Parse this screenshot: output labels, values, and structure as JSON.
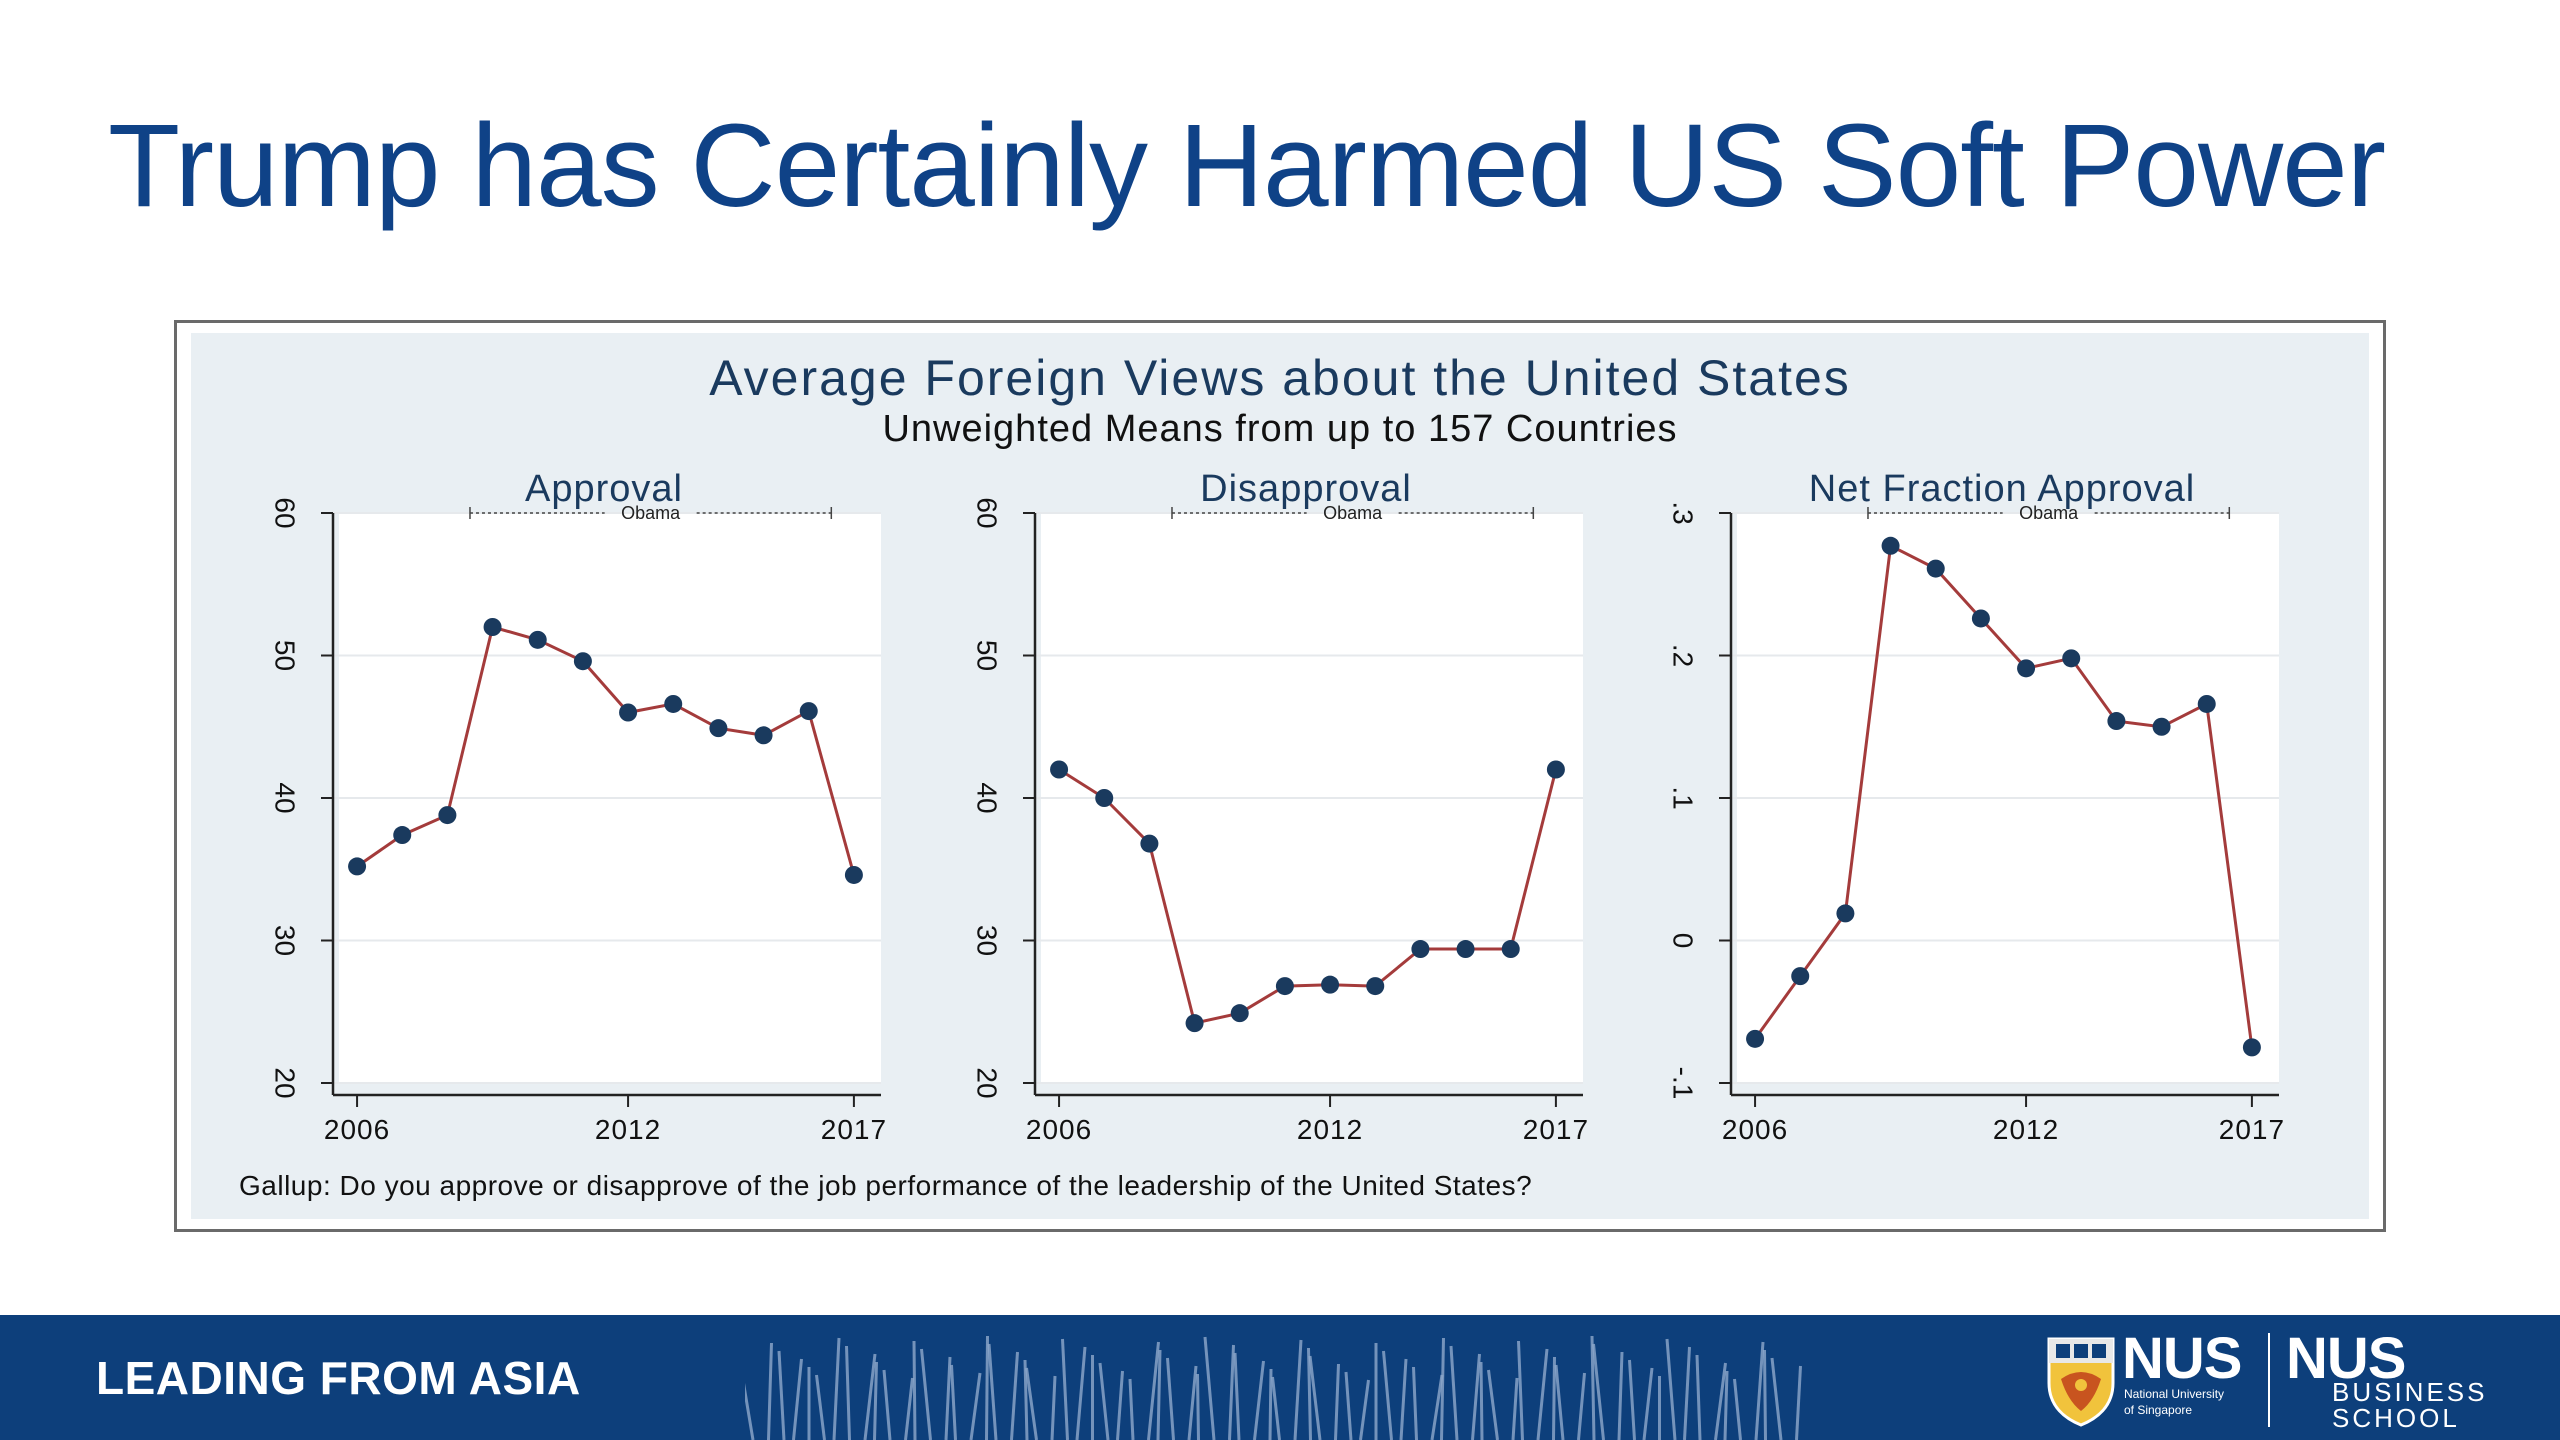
{
  "slide": {
    "title": "Trump has Certainly Harmed US Soft Power"
  },
  "figure": {
    "title": "Average Foreign Views about the United States",
    "subtitle": "Unweighted Means from up to 157 Countries",
    "note": "Gallup: Do you approve or disapprove of the job performance of the leadership of the United States?",
    "colors": {
      "line": "#a43b3b",
      "marker": "#1a3a5e",
      "panel_bg": "#ffffff",
      "outer_bg": "#e9eff3",
      "title": "#1a3a5e"
    }
  },
  "chart_data": [
    {
      "type": "line",
      "title": "Approval",
      "x": [
        2006,
        2007,
        2008,
        2009,
        2010,
        2011,
        2012,
        2013,
        2014,
        2015,
        2016,
        2017
      ],
      "y": [
        35.2,
        37.4,
        38.8,
        52.0,
        51.1,
        49.6,
        46.0,
        46.6,
        44.9,
        44.4,
        46.1,
        34.6
      ],
      "xlim": [
        2005.6,
        2017.6
      ],
      "ylim": [
        20,
        60
      ],
      "xticks": [
        2006,
        2012,
        2017
      ],
      "yticks": [
        20,
        30,
        40,
        50,
        60
      ],
      "ytick_labels": [
        "20",
        "30",
        "40",
        "50",
        "60"
      ],
      "grid": true,
      "annotation": {
        "label": "Obama",
        "x_start": 2008.5,
        "x_end": 2016.5
      }
    },
    {
      "type": "line",
      "title": "Disapproval",
      "x": [
        2006,
        2007,
        2008,
        2009,
        2010,
        2011,
        2012,
        2013,
        2014,
        2015,
        2016,
        2017
      ],
      "y": [
        42.0,
        40.0,
        36.8,
        24.2,
        24.9,
        26.8,
        26.9,
        26.8,
        29.4,
        29.4,
        29.4,
        42.0
      ],
      "xlim": [
        2005.6,
        2017.6
      ],
      "ylim": [
        20,
        60
      ],
      "xticks": [
        2006,
        2012,
        2017
      ],
      "yticks": [
        20,
        30,
        40,
        50,
        60
      ],
      "ytick_labels": [
        "20",
        "30",
        "40",
        "50",
        "60"
      ],
      "grid": true,
      "annotation": {
        "label": "Obama",
        "x_start": 2008.5,
        "x_end": 2016.5
      }
    },
    {
      "type": "line",
      "title": "Net Fraction Approval",
      "x": [
        2006,
        2007,
        2008,
        2009,
        2010,
        2011,
        2012,
        2013,
        2014,
        2015,
        2016,
        2017
      ],
      "y": [
        -0.069,
        -0.025,
        0.019,
        0.277,
        0.261,
        0.226,
        0.191,
        0.198,
        0.154,
        0.15,
        0.166,
        -0.075
      ],
      "xlim": [
        2005.6,
        2017.6
      ],
      "ylim": [
        -0.1,
        0.3
      ],
      "xticks": [
        2006,
        2012,
        2017
      ],
      "yticks": [
        -0.1,
        0,
        0.1,
        0.2,
        0.3
      ],
      "ytick_labels": [
        "-.1",
        "0",
        ".1",
        ".2",
        ".3"
      ],
      "grid": true,
      "annotation": {
        "label": "Obama",
        "x_start": 2008.5,
        "x_end": 2016.5
      }
    }
  ],
  "footer": {
    "tagline": "LEADING FROM ASIA",
    "nus_name": "NUS",
    "nus_sub_line1": "National University",
    "nus_sub_line2": "of Singapore",
    "biz_name": "NUS",
    "biz_sub_line1": "BUSINESS",
    "biz_sub_line2": "SCHOOL"
  }
}
